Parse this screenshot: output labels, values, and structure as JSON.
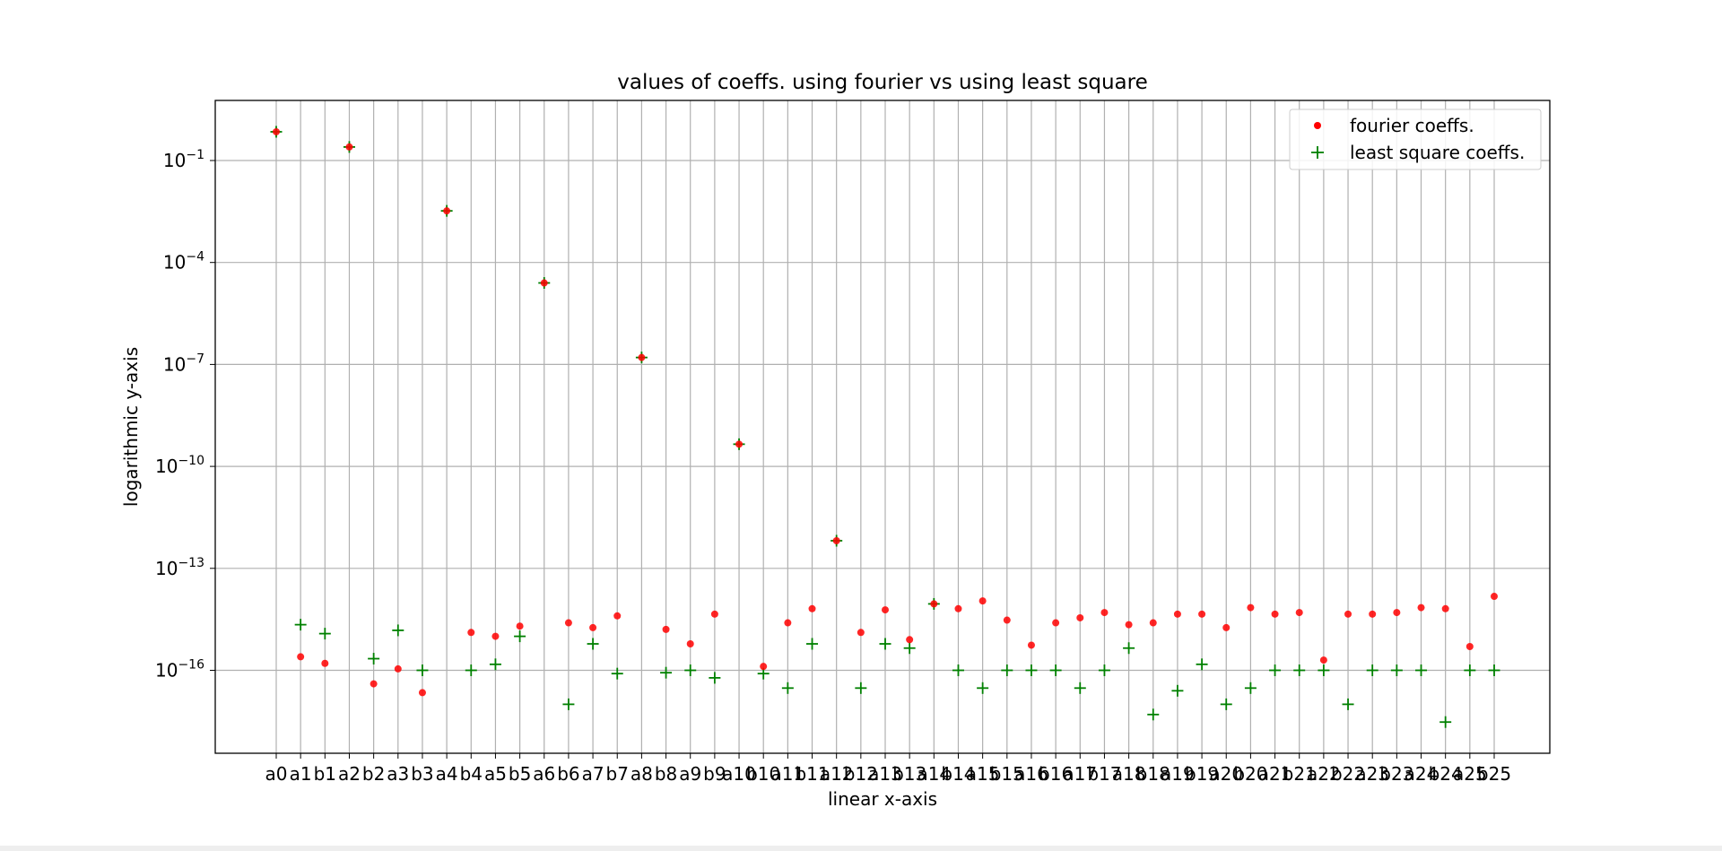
{
  "chart_data": {
    "type": "scatter",
    "title": "values of coeffs. using fourier vs using least square",
    "xlabel": "linear x-axis",
    "ylabel": "logarithmic y-axis",
    "y_scale": "log",
    "ylim": [
      1e-18,
      2
    ],
    "yticks": [
      {
        "value": 0.1,
        "base": "10",
        "exp": "−1"
      },
      {
        "value": 0.0001,
        "base": "10",
        "exp": "−4"
      },
      {
        "value": 1e-07,
        "base": "10",
        "exp": "−7"
      },
      {
        "value": 1e-10,
        "base": "10",
        "exp": "−10"
      },
      {
        "value": 1e-13,
        "base": "10",
        "exp": "−13"
      },
      {
        "value": 1e-16,
        "base": "10",
        "exp": "−16"
      }
    ],
    "grid": true,
    "legend_position": "top-right",
    "categories": [
      "a0",
      "a1",
      "b1",
      "a2",
      "b2",
      "a3",
      "b3",
      "a4",
      "b4",
      "a5",
      "b5",
      "a6",
      "b6",
      "a7",
      "b7",
      "a8",
      "b8",
      "a9",
      "b9",
      "a10",
      "b10",
      "a11",
      "b11",
      "a12",
      "b12",
      "a13",
      "b13",
      "a14",
      "b14",
      "a15",
      "b15",
      "a16",
      "b16",
      "a17",
      "b17",
      "a18",
      "b18",
      "a19",
      "b19",
      "a20",
      "b20",
      "a21",
      "b21",
      "a22",
      "b22",
      "a23",
      "b23",
      "a24",
      "b24",
      "a25",
      "b25"
    ],
    "series": [
      {
        "name": "fourier coeffs.",
        "color": "#ff0000",
        "marker": "dot",
        "values": [
          0.7,
          2.5e-16,
          1.6e-16,
          0.25,
          4e-17,
          1.1e-16,
          2.2e-17,
          0.0033,
          1.3e-15,
          1e-15,
          2e-15,
          2.5e-05,
          2.5e-15,
          1.8e-15,
          4e-15,
          1.6e-07,
          1.6e-15,
          6e-16,
          4.5e-15,
          4.5e-10,
          1.3e-16,
          2.5e-15,
          6.5e-15,
          6.5e-13,
          1.3e-15,
          6e-15,
          8e-16,
          9e-15,
          6.5e-15,
          1.1e-14,
          3e-15,
          5.5e-16,
          2.5e-15,
          3.5e-15,
          5e-15,
          2.2e-15,
          2.5e-15,
          4.5e-15,
          4.5e-15,
          1.8e-15,
          7e-15,
          4.5e-15,
          5e-15,
          2e-16,
          4.5e-15,
          4.5e-15,
          5e-15,
          7e-15,
          6.5e-15,
          5e-16,
          1.5e-14
        ]
      },
      {
        "name": "least square coeffs.",
        "color": "#008000",
        "marker": "plus",
        "values": [
          0.7,
          2.2e-15,
          1.2e-15,
          0.25,
          2.2e-16,
          1.5e-15,
          1e-16,
          0.0033,
          1e-16,
          1.5e-16,
          1e-15,
          2.5e-05,
          1e-17,
          6e-16,
          8e-17,
          1.6e-07,
          8.5e-17,
          1e-16,
          6e-17,
          4.5e-10,
          8e-17,
          3e-17,
          6e-16,
          6.5e-13,
          3e-17,
          6e-16,
          4.5e-16,
          9e-15,
          1e-16,
          3e-17,
          1e-16,
          1e-16,
          1e-16,
          3e-17,
          1e-16,
          4.5e-16,
          5e-18,
          2.5e-17,
          1.5e-16,
          1e-17,
          3e-17,
          1e-16,
          1e-16,
          1e-16,
          1e-17,
          1e-16,
          1e-16,
          1e-16,
          3e-18,
          1e-16,
          1e-16
        ]
      }
    ]
  }
}
